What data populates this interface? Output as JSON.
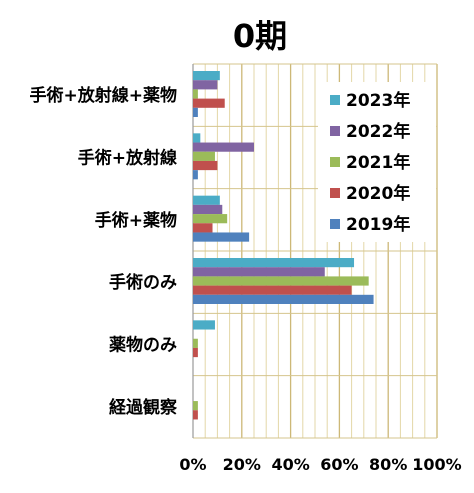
{
  "chart_data": {
    "type": "bar",
    "orientation": "horizontal",
    "title": "0期",
    "categories": [
      "手術+放射線+薬物",
      "手術+放射線",
      "手術+薬物",
      "手術のみ",
      "薬物のみ",
      "経過観察"
    ],
    "xlim": [
      0,
      100
    ],
    "x_ticks": [
      "0%",
      "20%",
      "40%",
      "60%",
      "80%",
      "100%"
    ],
    "grid": true,
    "legend_position": "right",
    "series": [
      {
        "name": "2023年",
        "color": "#4bacc6",
        "values": [
          11,
          3,
          11,
          66,
          9,
          0
        ]
      },
      {
        "name": "2022年",
        "color": "#8064a2",
        "values": [
          10,
          25,
          12,
          54,
          0,
          0
        ]
      },
      {
        "name": "2021年",
        "color": "#9bbb59",
        "values": [
          2,
          9,
          14,
          72,
          2,
          2
        ]
      },
      {
        "name": "2020年",
        "color": "#c0504d",
        "values": [
          13,
          10,
          8,
          65,
          2,
          2
        ]
      },
      {
        "name": "2019年",
        "color": "#4f81bd",
        "values": [
          2,
          2,
          23,
          74,
          0,
          0
        ]
      }
    ]
  }
}
